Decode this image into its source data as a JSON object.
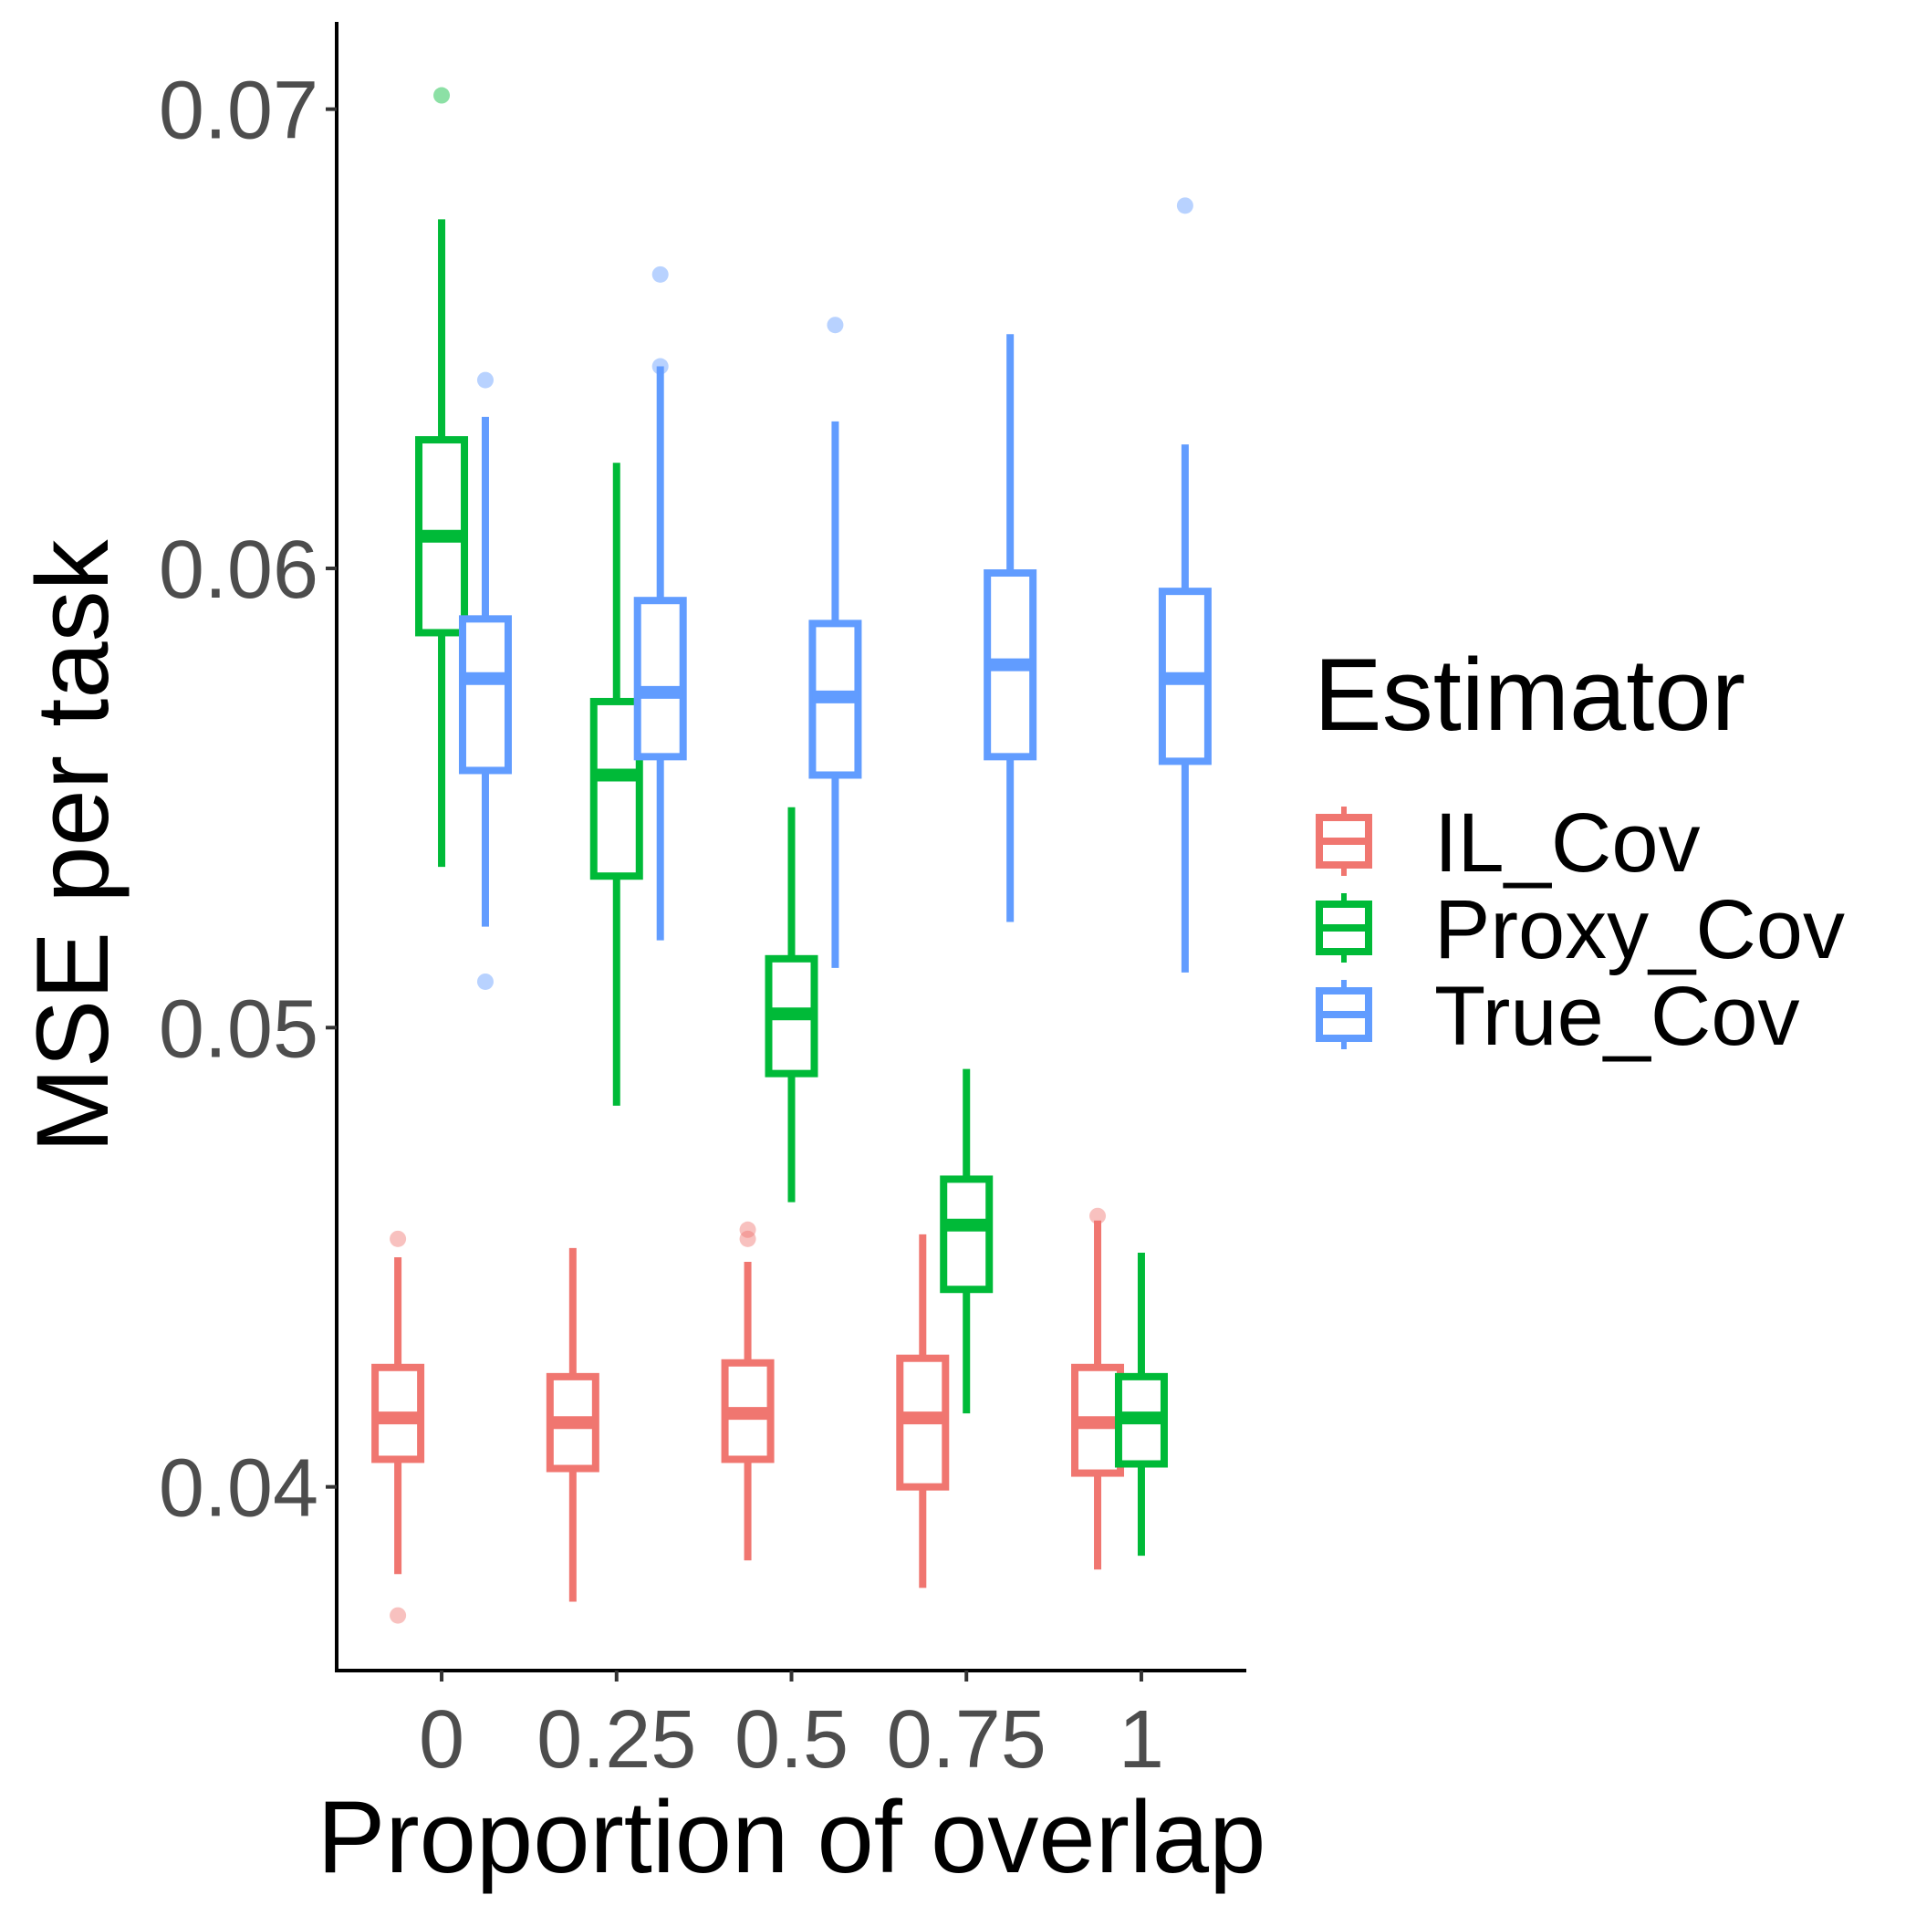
{
  "chart_data": {
    "type": "boxplot",
    "xlabel": "Proportion of overlap",
    "ylabel": "MSE per task",
    "categories": [
      "0",
      "0.25",
      "0.5",
      "0.75",
      "1"
    ],
    "y_ticks": [
      "0.04",
      "0.05",
      "0.06",
      "0.07"
    ],
    "y_tick_values": [
      0.04,
      0.05,
      0.06,
      0.07
    ],
    "ylim": [
      0.036,
      0.0719
    ],
    "grid": false,
    "legend": {
      "title": "Estimator",
      "position": "right"
    },
    "series": [
      {
        "name": "IL_Cov",
        "color": "#F07670",
        "boxes": [
          {
            "whisker_low": 0.0381,
            "q1": 0.0406,
            "median": 0.0415,
            "q3": 0.0426,
            "whisker_high": 0.045,
            "outliers": [
              0.0454,
              0.0372
            ]
          },
          {
            "whisker_low": 0.0375,
            "q1": 0.0404,
            "median": 0.0414,
            "q3": 0.0424,
            "whisker_high": 0.0452,
            "outliers": []
          },
          {
            "whisker_low": 0.0384,
            "q1": 0.0406,
            "median": 0.0416,
            "q3": 0.0427,
            "whisker_high": 0.0449,
            "outliers": [
              0.0456,
              0.0454
            ]
          },
          {
            "whisker_low": 0.0378,
            "q1": 0.04,
            "median": 0.0415,
            "q3": 0.0428,
            "whisker_high": 0.0455,
            "outliers": []
          },
          {
            "whisker_low": 0.0382,
            "q1": 0.0403,
            "median": 0.0414,
            "q3": 0.0426,
            "whisker_high": 0.0458,
            "outliers": [
              0.0459
            ]
          }
        ]
      },
      {
        "name": "Proxy_Cov",
        "color": "#00BA38",
        "boxes": [
          {
            "whisker_low": 0.0535,
            "q1": 0.0586,
            "median": 0.0607,
            "q3": 0.0628,
            "whisker_high": 0.0676,
            "outliers": [
              0.0703
            ]
          },
          {
            "whisker_low": 0.0483,
            "q1": 0.0533,
            "median": 0.0555,
            "q3": 0.0571,
            "whisker_high": 0.0623,
            "outliers": []
          },
          {
            "whisker_low": 0.0462,
            "q1": 0.049,
            "median": 0.0503,
            "q3": 0.0515,
            "whisker_high": 0.0548,
            "outliers": []
          },
          {
            "whisker_low": 0.0416,
            "q1": 0.0443,
            "median": 0.0457,
            "q3": 0.0467,
            "whisker_high": 0.0491,
            "outliers": []
          },
          {
            "whisker_low": 0.0385,
            "q1": 0.0405,
            "median": 0.0415,
            "q3": 0.0424,
            "whisker_high": 0.0451,
            "outliers": []
          }
        ]
      },
      {
        "name": "True_Cov",
        "color": "#619CFF",
        "boxes": [
          {
            "whisker_low": 0.0522,
            "q1": 0.0556,
            "median": 0.0576,
            "q3": 0.0589,
            "whisker_high": 0.0633,
            "outliers": [
              0.0641,
              0.051
            ]
          },
          {
            "whisker_low": 0.0519,
            "q1": 0.0559,
            "median": 0.0573,
            "q3": 0.0593,
            "whisker_high": 0.0644,
            "outliers": [
              0.0664,
              0.0644
            ]
          },
          {
            "whisker_low": 0.0513,
            "q1": 0.0555,
            "median": 0.0572,
            "q3": 0.0588,
            "whisker_high": 0.0632,
            "outliers": [
              0.0653
            ]
          },
          {
            "whisker_low": 0.0523,
            "q1": 0.0559,
            "median": 0.0579,
            "q3": 0.0599,
            "whisker_high": 0.0651,
            "outliers": []
          },
          {
            "whisker_low": 0.0512,
            "q1": 0.0558,
            "median": 0.0576,
            "q3": 0.0595,
            "whisker_high": 0.0627,
            "outliers": [
              0.0679
            ]
          }
        ]
      }
    ]
  }
}
